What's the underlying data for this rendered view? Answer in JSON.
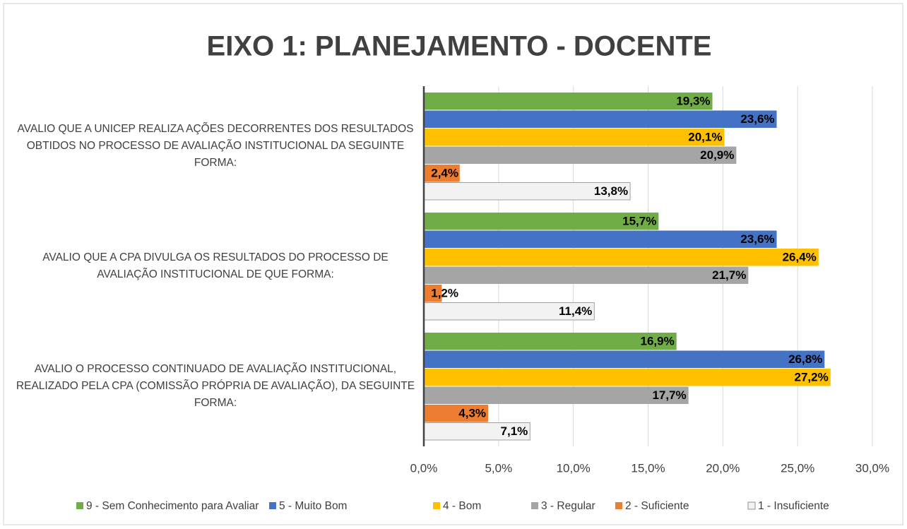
{
  "chart_data": {
    "type": "bar",
    "orientation": "horizontal",
    "title": "EIXO 1: PLANEJAMENTO - DOCENTE",
    "categories": [
      "AVALIO QUE A UNICEP REALIZA AÇÕES DECORRENTES DOS RESULTADOS OBTIDOS NO PROCESSO DE AVALIAÇÃO INSTITUCIONAL DA SEGUINTE FORMA:",
      "AVALIO QUE A CPA DIVULGA OS RESULTADOS DO PROCESSO DE AVALIAÇÃO INSTITUCIONAL DE QUE FORMA:",
      "AVALIO O PROCESSO CONTINUADO DE AVALIAÇÃO INSTITUCIONAL, REALIZADO PELA CPA (COMISSÃO PRÓPRIA DE AVALIAÇÃO), DA SEGUINTE FORMA:"
    ],
    "series": [
      {
        "name": "9 - Sem Conhecimento para Avaliar",
        "color": "#70ad47",
        "values": [
          19.3,
          15.7,
          16.9
        ],
        "value_labels": [
          "19,3%",
          "15,7%",
          "16,9%"
        ]
      },
      {
        "name": "5 - Muito Bom",
        "color": "#4472c4",
        "values": [
          23.6,
          23.6,
          26.8
        ],
        "value_labels": [
          "23,6%",
          "23,6%",
          "26,8%"
        ]
      },
      {
        "name": "4 - Bom",
        "color": "#ffc000",
        "values": [
          20.1,
          26.4,
          27.2
        ],
        "value_labels": [
          "20,1%",
          "26,4%",
          "27,2%"
        ]
      },
      {
        "name": "3 - Regular",
        "color": "#a5a5a5",
        "values": [
          20.9,
          21.7,
          17.7
        ],
        "value_labels": [
          "20,9%",
          "21,7%",
          "17,7%"
        ]
      },
      {
        "name": "2 - Suficiente",
        "color": "#ed7d31",
        "values": [
          2.4,
          1.2,
          4.3
        ],
        "value_labels": [
          "2,4%",
          "1,2%",
          "4,3%"
        ]
      },
      {
        "name": "1 - Insuficiente",
        "color": "#f2f2f2",
        "values": [
          13.8,
          11.4,
          7.1
        ],
        "value_labels": [
          "13,8%",
          "11,4%",
          "7,1%"
        ]
      }
    ],
    "xlim": [
      0,
      30
    ],
    "xticks": [
      {
        "value": 0,
        "label": "0,0%"
      },
      {
        "value": 5,
        "label": "5,0%"
      },
      {
        "value": 10,
        "label": "10,0%"
      },
      {
        "value": 15,
        "label": "15,0%"
      },
      {
        "value": 20,
        "label": "20,0%"
      },
      {
        "value": 25,
        "label": "25,0%"
      },
      {
        "value": 30,
        "label": "30,0%"
      }
    ],
    "grid": true,
    "legend": "bottom"
  }
}
